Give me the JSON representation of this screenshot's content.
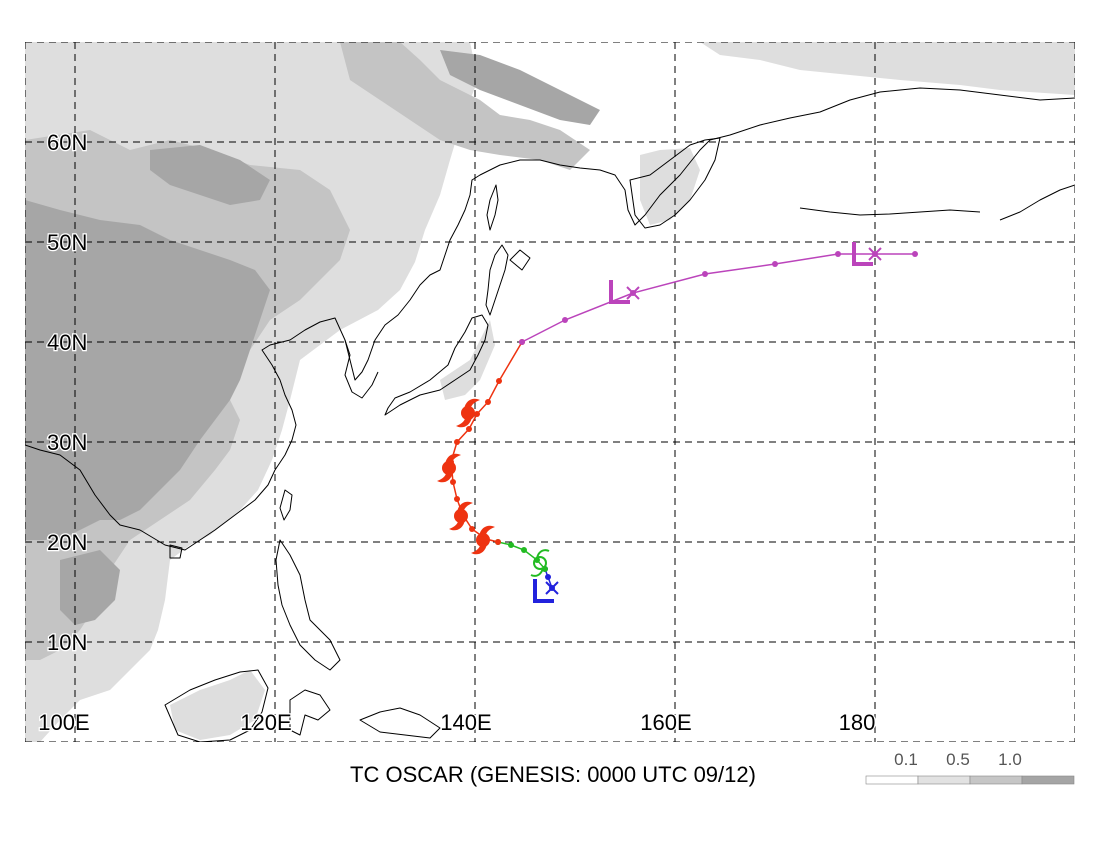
{
  "title": "TC OSCAR (GENESIS: 0000 UTC 09/12)",
  "axes": {
    "longitude_labels": [
      "100E",
      "120E",
      "140E",
      "160E",
      "180"
    ],
    "latitude_labels": [
      "10N",
      "20N",
      "30N",
      "40N",
      "50N",
      "60N"
    ]
  },
  "legend": {
    "ticks": [
      "0.1",
      "0.5",
      "1.0"
    ],
    "colors": [
      "#ffffff",
      "#e2e2e2",
      "#c6c6c6",
      "#a5a5a5"
    ]
  },
  "shading_colors": {
    "light": "#dedede",
    "medium": "#c4c4c4",
    "dark": "#a6a6a6"
  },
  "track": {
    "segments": [
      {
        "color": "#2222dd",
        "points": [
          [
            147.7,
            15.4
          ],
          [
            147.3,
            16.5
          ],
          [
            147.0,
            17.3
          ]
        ]
      },
      {
        "color": "#22bb22",
        "points": [
          [
            147.0,
            17.3
          ],
          [
            146.2,
            18.2
          ],
          [
            144.9,
            19.2
          ],
          [
            143.6,
            19.7
          ],
          [
            142.3,
            20.0
          ]
        ]
      },
      {
        "color": "#ee3311",
        "points": [
          [
            142.3,
            20.0
          ],
          [
            141.1,
            20.3
          ],
          [
            139.7,
            21.3
          ],
          [
            138.8,
            22.7
          ],
          [
            138.2,
            24.3
          ],
          [
            137.8,
            26.0
          ],
          [
            137.6,
            28.0
          ],
          [
            138.2,
            30.0
          ],
          [
            139.4,
            31.3
          ],
          [
            140.2,
            32.8
          ],
          [
            141.3,
            34.0
          ],
          [
            142.4,
            36.1
          ],
          [
            144.7,
            40.0
          ]
        ]
      },
      {
        "color": "#bb44bb",
        "points": [
          [
            144.7,
            40.0
          ],
          [
            149.0,
            42.2
          ],
          [
            155.8,
            44.9
          ],
          [
            163.0,
            46.8
          ],
          [
            170.0,
            47.8
          ],
          [
            176.3,
            48.8
          ],
          [
            180.0,
            48.8
          ],
          [
            184.0,
            48.8
          ]
        ]
      }
    ],
    "symbols": [
      {
        "kind": "typhoon",
        "color": "#ee3311",
        "at": [
          140.8,
          20.2
        ]
      },
      {
        "kind": "typhoon",
        "color": "#ee3311",
        "at": [
          138.6,
          22.6
        ]
      },
      {
        "kind": "typhoon",
        "color": "#ee3311",
        "at": [
          137.4,
          27.4
        ]
      },
      {
        "kind": "typhoon",
        "color": "#ee3311",
        "at": [
          139.3,
          32.9
        ]
      },
      {
        "kind": "storm",
        "color": "#22bb22",
        "at": [
          146.5,
          17.9
        ]
      },
      {
        "kind": "low",
        "color": "#2222dd",
        "at": [
          146.9,
          15.1
        ]
      },
      {
        "kind": "low",
        "color": "#bb44bb",
        "at": [
          154.5,
          45.0
        ]
      },
      {
        "kind": "low",
        "color": "#bb44bb",
        "at": [
          178.8,
          48.8
        ]
      },
      {
        "kind": "cross",
        "color": "#2222dd",
        "at": [
          147.7,
          15.4
        ]
      },
      {
        "kind": "cross",
        "color": "#bb44bb",
        "at": [
          155.8,
          44.9
        ]
      },
      {
        "kind": "cross",
        "color": "#bb44bb",
        "at": [
          180.0,
          48.8
        ]
      }
    ]
  }
}
